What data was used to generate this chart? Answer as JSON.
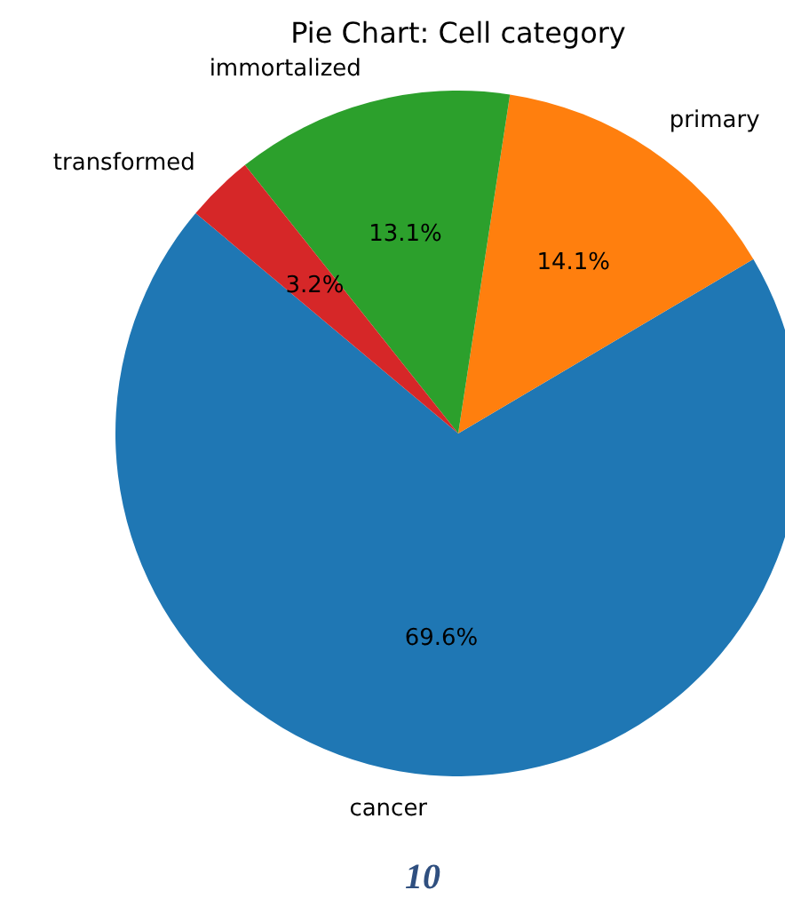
{
  "chart_data": {
    "type": "pie",
    "title": "Pie Chart: Cell category",
    "categories": [
      "cancer",
      "primary",
      "immortalized",
      "transformed"
    ],
    "values": [
      69.6,
      14.1,
      13.1,
      3.2
    ],
    "colors": [
      "#1f77b4",
      "#ff7f0e",
      "#2ca02c",
      "#d62728"
    ],
    "value_labels": [
      "69.6%",
      "14.1%",
      "13.1%",
      "3.2%"
    ],
    "annotations": [
      "10"
    ]
  }
}
